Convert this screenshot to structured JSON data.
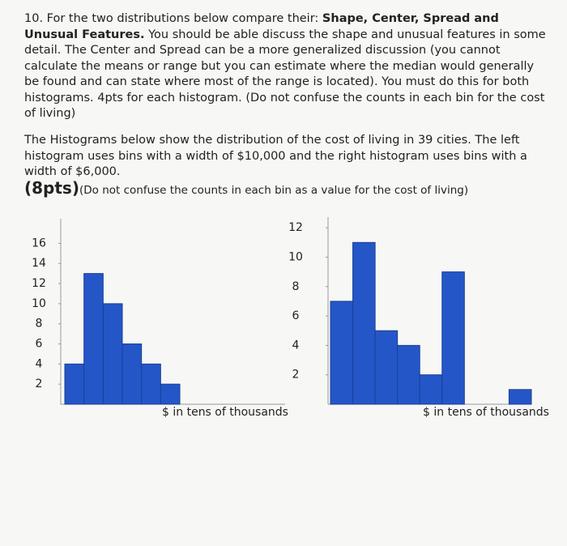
{
  "document": {
    "paragraph1": {
      "intro": "10. For the two distributions below compare their: ",
      "bold": "Shape, Center, Spread and Unusual Features.",
      "rest": " You should be able discuss the shape and unusual features in some detail. The Center and Spread can be a more generalized discussion (you cannot calculate the means or range but you can estimate where the median would generally be found and can state where most of the range is located). You must do this for both histograms. 4pts for each histogram. (Do not confuse the counts in each bin for the cost of living)"
    },
    "paragraph2": {
      "text": "The Histograms below show the distribution of the cost of living in 39 cities. The left histogram uses bins with a width of $10,000 and the right histogram uses bins with a width of $6,000.",
      "points": "(8pts)",
      "note": "(Do not confuse the counts in each bin as a value for the cost of living)"
    }
  },
  "chart_data": [
    {
      "type": "bar",
      "x_label": "$ in tens of thousands",
      "categories": [
        null,
        null,
        null,
        null,
        null,
        null
      ],
      "values": [
        4,
        13,
        10,
        6,
        4,
        2
      ],
      "color": "#2456c8",
      "ylim": [
        0,
        17
      ],
      "yticks": [
        2,
        4,
        6,
        8,
        10,
        12,
        14,
        16
      ]
    },
    {
      "type": "bar",
      "x_label": "$ in tens of thousands",
      "categories": [
        null,
        null,
        null,
        null,
        null,
        null,
        null,
        null,
        null
      ],
      "values": [
        7,
        11,
        5,
        4,
        2,
        9,
        0,
        0,
        1
      ],
      "color": "#2456c8",
      "ylim": [
        0,
        13
      ],
      "yticks": [
        2,
        4,
        6,
        8,
        10,
        12
      ]
    }
  ]
}
